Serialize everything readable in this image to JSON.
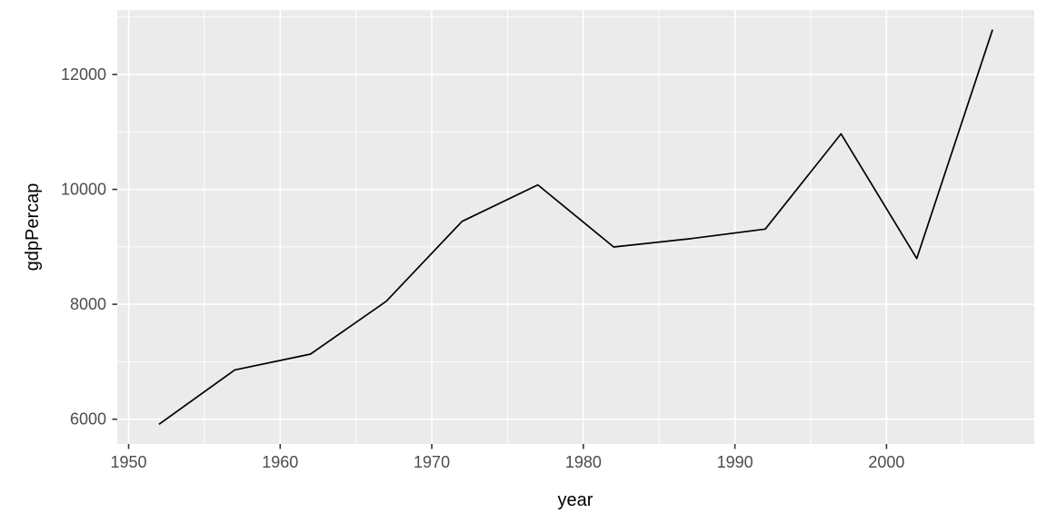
{
  "chart_data": {
    "type": "line",
    "title": "",
    "xlabel": "year",
    "ylabel": "gdpPercap",
    "x": [
      1952,
      1957,
      1962,
      1967,
      1972,
      1977,
      1982,
      1987,
      1992,
      1997,
      2002,
      2007
    ],
    "series": [
      {
        "name": "gdpPercap",
        "values": [
          5911.3,
          6856.9,
          7133.2,
          8053.0,
          9443.0,
          10079.0,
          8997.9,
          9139.7,
          9308.4,
          10967.3,
          8797.6,
          12779.4
        ]
      }
    ],
    "xlim": [
      1949.25,
      2009.75
    ],
    "ylim": [
      5567.9,
      13122.8
    ],
    "x_major_ticks": [
      1950,
      1960,
      1970,
      1980,
      1990,
      2000
    ],
    "x_minor_ticks": [
      1955,
      1965,
      1975,
      1985,
      1995,
      2005
    ],
    "y_major_ticks": [
      6000,
      8000,
      10000,
      12000
    ],
    "y_minor_ticks": [
      7000,
      9000,
      11000,
      13000
    ],
    "grid": "major+minor",
    "legend": "none",
    "colors": {
      "panel_bg": "#EBEBEB",
      "grid": "#FFFFFF",
      "line": "#000000",
      "tick_label": "#4D4D4D",
      "tick_mark": "#333333",
      "axis_title": "#000000",
      "page_bg": "#FFFFFF"
    }
  }
}
